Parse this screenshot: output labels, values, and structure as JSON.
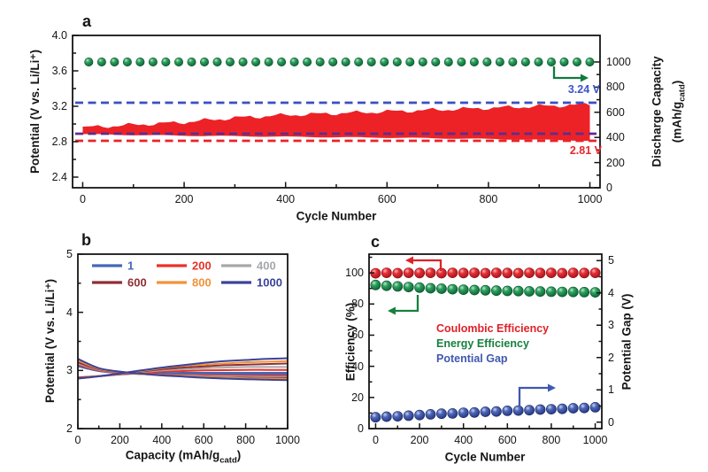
{
  "figure": {
    "background": "#ffffff"
  },
  "chart_data": [
    {
      "id": "a",
      "panel_label": "a",
      "type": "area+scatter",
      "xlabel": "Cycle Number",
      "ylabel_left": "Potential (V vs. Li/Li⁺)",
      "ylabel_right_line1": "Discharge Capacity",
      "ylabel_right_line2_pre": "(mAh/g",
      "ylabel_right_line2_sub": "catd",
      "ylabel_right_line2_post": ")",
      "xlim": [
        -20,
        1020
      ],
      "xticks": [
        "0",
        "200",
        "400",
        "600",
        "800",
        "1000"
      ],
      "xticks_minor": [
        100,
        300,
        500,
        700,
        900
      ],
      "ylim_left": [
        2.28,
        4.0
      ],
      "yticks_left": [
        "4.0",
        "3.6",
        "3.2",
        "2.8",
        "2.4"
      ],
      "yticks_left_minor": [
        2.6,
        3.0,
        3.4,
        3.8
      ],
      "ylim_right": [
        0,
        1211
      ],
      "yticks_right": [
        "1000",
        "800",
        "600",
        "400",
        "200",
        "0"
      ],
      "yticks_right_minor": [
        100,
        300,
        500,
        700,
        900
      ],
      "grid": false,
      "series": [
        {
          "name": "discharge-capacity",
          "marker": "sphere",
          "axis": "right",
          "color": "#0e7a3e",
          "value": 1000,
          "cycle_start": 12,
          "cycle_end": 1000,
          "count": 40
        },
        {
          "name": "potential-window-band",
          "type": "band",
          "axis": "left",
          "color": "#ec2227",
          "cycles": [
            0,
            50,
            100,
            150,
            200,
            250,
            300,
            350,
            400,
            450,
            500,
            550,
            600,
            650,
            700,
            750,
            800,
            850,
            900,
            950,
            1000
          ],
          "top": [
            2.96,
            2.975,
            2.99,
            3.005,
            3.02,
            3.045,
            3.07,
            3.085,
            3.1,
            3.11,
            3.12,
            3.13,
            3.14,
            3.15,
            3.16,
            3.17,
            3.18,
            3.19,
            3.2,
            3.21,
            3.22
          ],
          "bottom": [
            2.885,
            2.88,
            2.875,
            2.872,
            2.868,
            2.865,
            2.862,
            2.859,
            2.856,
            2.853,
            2.85,
            2.848,
            2.845,
            2.842,
            2.838,
            2.835,
            2.83,
            2.826,
            2.822,
            2.817,
            2.812
          ]
        }
      ],
      "reference_lines": [
        {
          "value": 3.24,
          "color": "#3a4fc1",
          "label": "3.24 V",
          "label_color": "#3a55c8"
        },
        {
          "value": 2.89,
          "color": "#5b2d8f",
          "label": ""
        },
        {
          "value": 2.81,
          "color": "#ec2227",
          "label": "2.81 V",
          "label_color": "#e8262b"
        }
      ]
    },
    {
      "id": "b",
      "panel_label": "b",
      "type": "line",
      "xlabel_pre": "Capacity (mAh/g",
      "xlabel_sub": "catd",
      "xlabel_post": ")",
      "ylabel": "Potential (V vs. Li/Li⁺)",
      "xlim": [
        0,
        1000
      ],
      "xticks": [
        "0",
        "200",
        "400",
        "600",
        "800",
        "1000"
      ],
      "xticks_minor": [
        100,
        300,
        500,
        700,
        900
      ],
      "ylim": [
        2,
        5
      ],
      "yticks": [
        "5",
        "4",
        "3",
        "2"
      ],
      "yticks_minor": [
        2.5,
        3.5,
        4.5
      ],
      "grid": false,
      "x_sample": [
        0,
        100,
        200,
        300,
        400,
        500,
        600,
        700,
        800,
        900,
        1000
      ],
      "series": [
        {
          "name": "1",
          "color": "#4467b6",
          "charge": [
            2.88,
            2.9,
            2.93,
            2.95,
            2.955,
            2.96,
            2.96,
            2.96,
            2.96,
            2.96,
            2.96
          ],
          "discharge": [
            3.07,
            2.99,
            2.955,
            2.94,
            2.935,
            2.93,
            2.93,
            2.93,
            2.93,
            2.93,
            2.93
          ]
        },
        {
          "name": "200",
          "color": "#e93229",
          "charge": [
            2.88,
            2.905,
            2.935,
            2.96,
            2.98,
            2.99,
            3.0,
            3.005,
            3.01,
            3.01,
            3.01
          ],
          "discharge": [
            3.1,
            3.0,
            2.96,
            2.945,
            2.93,
            2.925,
            2.92,
            2.915,
            2.91,
            2.91,
            2.91
          ]
        },
        {
          "name": "400",
          "color": "#a6a8ab",
          "charge": [
            2.87,
            2.9,
            2.94,
            2.97,
            3.0,
            3.02,
            3.04,
            3.05,
            3.06,
            3.06,
            3.06
          ],
          "discharge": [
            3.12,
            3.01,
            2.965,
            2.94,
            2.925,
            2.915,
            2.905,
            2.9,
            2.895,
            2.89,
            2.89
          ]
        },
        {
          "name": "600",
          "color": "#8e2f36",
          "charge": [
            2.87,
            2.9,
            2.94,
            2.98,
            3.02,
            3.05,
            3.07,
            3.09,
            3.1,
            3.11,
            3.12
          ],
          "discharge": [
            3.14,
            3.02,
            2.97,
            2.94,
            2.92,
            2.905,
            2.89,
            2.88,
            2.875,
            2.87,
            2.87
          ]
        },
        {
          "name": "800",
          "color": "#f29238",
          "charge": [
            2.86,
            2.9,
            2.945,
            2.99,
            3.04,
            3.08,
            3.1,
            3.12,
            3.14,
            3.15,
            3.16
          ],
          "discharge": [
            3.17,
            3.03,
            2.975,
            2.94,
            2.915,
            2.9,
            2.885,
            2.875,
            2.865,
            2.86,
            2.855
          ]
        },
        {
          "name": "1000",
          "color": "#3b4398",
          "charge": [
            2.86,
            2.9,
            2.95,
            3.0,
            3.05,
            3.09,
            3.13,
            3.16,
            3.18,
            3.2,
            3.21
          ],
          "discharge": [
            3.2,
            3.04,
            2.98,
            2.945,
            2.915,
            2.895,
            2.875,
            2.86,
            2.85,
            2.84,
            2.835
          ]
        }
      ],
      "legend_rows": [
        [
          "1",
          "200",
          "400"
        ],
        [
          "600",
          "800",
          "1000"
        ]
      ]
    },
    {
      "id": "c",
      "panel_label": "c",
      "type": "scatter",
      "xlabel": "Cycle Number",
      "ylabel_left": "Efficiency (%)",
      "ylabel_right": "Potential Gap (V)",
      "xlim": [
        -30,
        1030
      ],
      "xticks": [
        "0",
        "200",
        "400",
        "600",
        "800",
        "1000"
      ],
      "xticks_minor": [
        100,
        300,
        500,
        700,
        900
      ],
      "ylim_left": [
        0,
        112
      ],
      "yticks_left": [
        "100",
        "80",
        "60",
        "40",
        "20",
        "0"
      ],
      "yticks_left_minor": [
        10,
        30,
        50,
        70,
        90,
        110
      ],
      "ylim_right": [
        -0.2,
        5.2
      ],
      "yticks_right": [
        "5",
        "4",
        "3",
        "2",
        "1",
        "0"
      ],
      "yticks_right_minor": [
        0.5,
        1.5,
        2.5,
        3.5,
        4.5
      ],
      "grid": false,
      "x": [
        0,
        50,
        100,
        150,
        200,
        250,
        300,
        350,
        400,
        450,
        500,
        550,
        600,
        650,
        700,
        750,
        800,
        850,
        900,
        950,
        1000
      ],
      "series": [
        {
          "name": "Coulombic Efficiency",
          "axis": "left",
          "marker": "sphere",
          "color": "#e02128",
          "values": [
            99.7,
            100,
            99.8,
            100,
            99.9,
            100,
            99.8,
            100,
            99.9,
            100,
            99.8,
            100,
            99.9,
            99.8,
            100,
            99.9,
            100,
            99.8,
            100,
            99.9,
            100
          ]
        },
        {
          "name": "Energy Efficiency",
          "axis": "left",
          "marker": "sphere",
          "color": "#17803f",
          "values": [
            92.2,
            91.7,
            91.3,
            90.9,
            90.5,
            90.1,
            89.8,
            89.5,
            89.2,
            89.0,
            88.8,
            88.6,
            88.4,
            88.3,
            88.1,
            88.0,
            87.9,
            87.8,
            87.7,
            87.6,
            87.5
          ]
        },
        {
          "name": "Potential Gap",
          "axis": "right",
          "marker": "sphere",
          "color": "#3f58b0",
          "values": [
            0.15,
            0.17,
            0.18,
            0.2,
            0.22,
            0.24,
            0.26,
            0.27,
            0.29,
            0.3,
            0.32,
            0.33,
            0.35,
            0.36,
            0.37,
            0.39,
            0.4,
            0.41,
            0.43,
            0.44,
            0.46
          ]
        }
      ]
    }
  ]
}
